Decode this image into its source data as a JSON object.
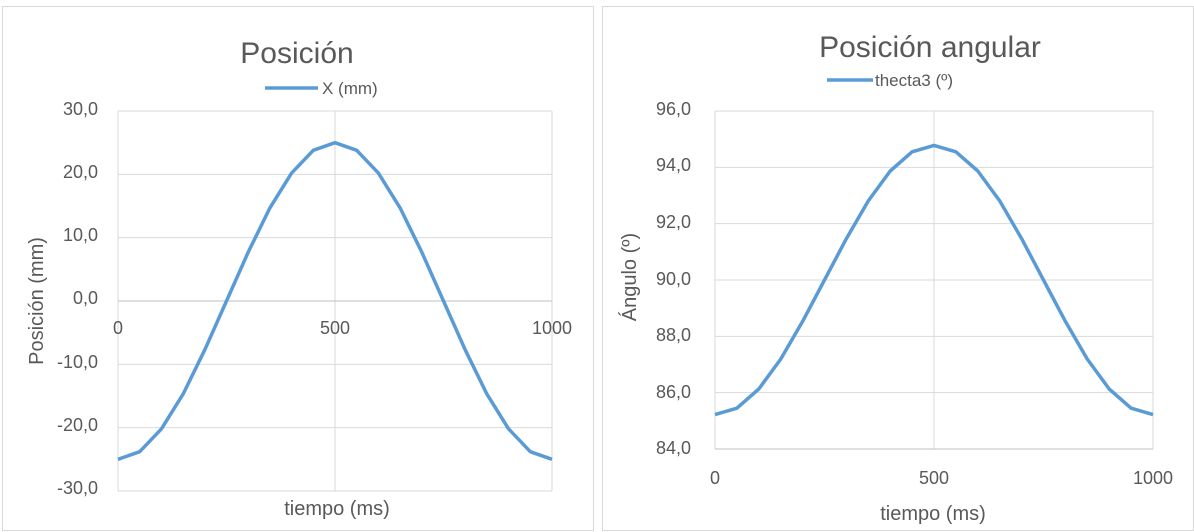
{
  "charts": [
    {
      "title": "Posición",
      "legend": "X (mm)",
      "xlabel": "tiempo (ms)",
      "ylabel": "Posición (mm)",
      "xticks": [
        "0",
        "500",
        "1000"
      ],
      "yticks": [
        "30,0",
        "20,0",
        "10,0",
        "0,0",
        "-10,0",
        "-20,0",
        "-30,0"
      ]
    },
    {
      "title": "Posición angular",
      "legend": "thecta3 (º)",
      "xlabel": "tiempo (ms)",
      "ylabel": "Ángulo (º)",
      "xticks": [
        "0",
        "500",
        "1000"
      ],
      "yticks": [
        "96,0",
        "94,0",
        "92,0",
        "90,0",
        "88,0",
        "86,0",
        "84,0"
      ]
    }
  ],
  "chart_data": [
    {
      "type": "line",
      "title": "Posición",
      "xlabel": "tiempo (ms)",
      "ylabel": "Posición (mm)",
      "xlim": [
        0,
        1000
      ],
      "ylim": [
        -30,
        30
      ],
      "grid": true,
      "legend_position": "top",
      "series_color": "#5b9bd5",
      "series": [
        {
          "name": "X (mm)",
          "x": [
            0,
            50,
            100,
            150,
            200,
            250,
            300,
            350,
            400,
            450,
            500,
            550,
            600,
            650,
            700,
            750,
            800,
            850,
            900,
            950,
            1000
          ],
          "y": [
            -25.0,
            -23.8,
            -20.2,
            -14.7,
            -7.7,
            0.0,
            7.7,
            14.7,
            20.2,
            23.8,
            25.0,
            23.8,
            20.2,
            14.7,
            7.7,
            0.0,
            -7.7,
            -14.7,
            -20.2,
            -23.8,
            -25.0
          ]
        }
      ]
    },
    {
      "type": "line",
      "title": "Posición angular",
      "xlabel": "tiempo (ms)",
      "ylabel": "Ángulo (º)",
      "xlim": [
        0,
        1000
      ],
      "ylim": [
        84,
        96
      ],
      "grid": true,
      "legend_position": "top",
      "series_color": "#5b9bd5",
      "series": [
        {
          "name": "thecta3 (º)",
          "x": [
            0,
            50,
            100,
            150,
            200,
            250,
            300,
            350,
            400,
            450,
            500,
            550,
            600,
            650,
            700,
            750,
            800,
            850,
            900,
            950,
            1000
          ],
          "y": [
            85.22,
            85.45,
            86.13,
            87.19,
            88.53,
            90.0,
            91.47,
            92.81,
            93.87,
            94.55,
            94.78,
            94.55,
            93.87,
            92.81,
            91.47,
            90.0,
            88.53,
            87.19,
            86.13,
            85.45,
            85.22
          ]
        }
      ]
    }
  ]
}
